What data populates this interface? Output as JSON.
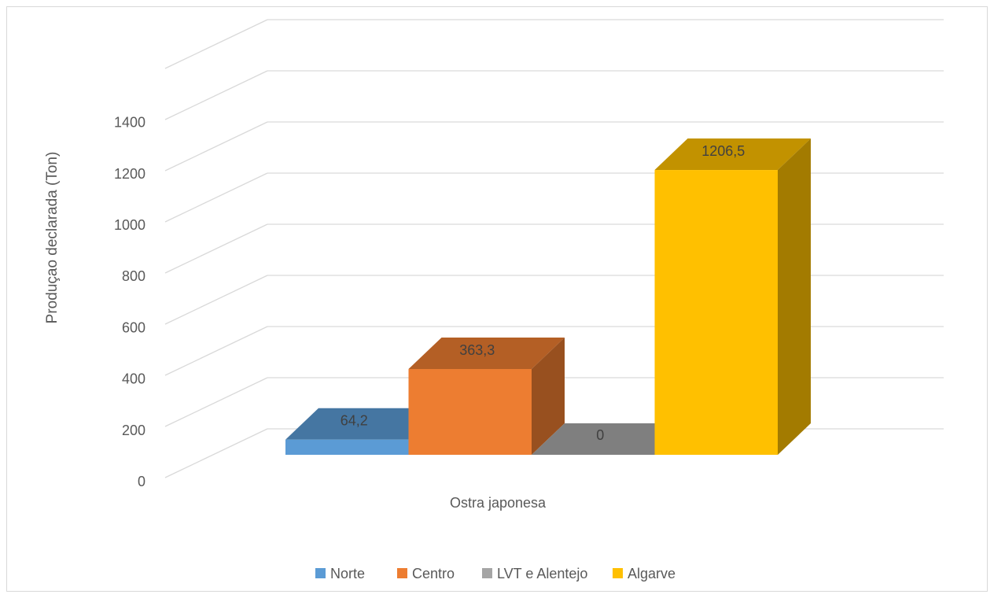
{
  "chart_data": {
    "type": "bar",
    "style": "3d-clustered-column",
    "categories": [
      "Ostra japonesa"
    ],
    "series": [
      {
        "name": "Norte",
        "values": [
          64.2
        ],
        "label": "64,2",
        "color": "#5B9BD5"
      },
      {
        "name": "Centro",
        "values": [
          363.3
        ],
        "label": "363,3",
        "color": "#ED7D31"
      },
      {
        "name": "LVT e Alentejo",
        "values": [
          0
        ],
        "label": "0",
        "color": "#A5A5A5"
      },
      {
        "name": "Algarve",
        "values": [
          1206.5
        ],
        "label": "1206,5",
        "color": "#FFC000"
      }
    ],
    "ylabel": "Produçao declarada (Ton)",
    "xlabel": "",
    "ylim": [
      0,
      1400
    ],
    "yticks": [
      "0",
      "200",
      "400",
      "600",
      "800",
      "1000",
      "1200",
      "1400"
    ],
    "grid": true,
    "legend_position": "bottom"
  }
}
